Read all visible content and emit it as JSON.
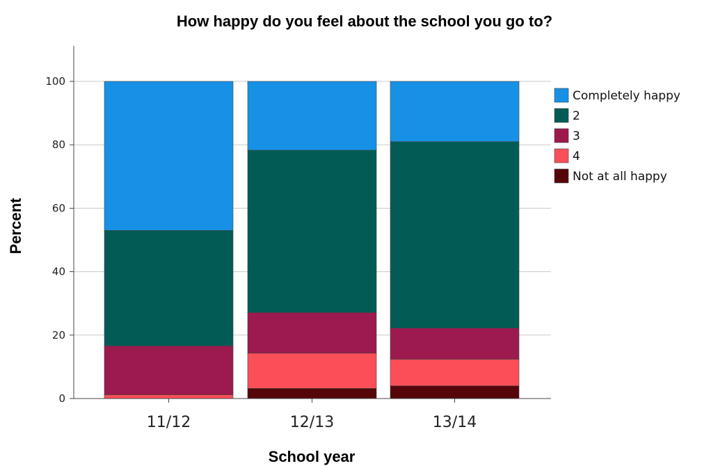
{
  "chart_data": {
    "type": "bar",
    "stacked": true,
    "title": "How happy do you feel about the school you go to?",
    "xlabel": "School year",
    "ylabel": "Percent",
    "ylim": [
      0,
      111
    ],
    "yticks": [
      0,
      20,
      40,
      60,
      80,
      100
    ],
    "categories": [
      "11/12",
      "12/13",
      "13/14"
    ],
    "series": [
      {
        "name": "Not at all happy",
        "color": "#560609",
        "values": [
          0,
          3.2,
          4
        ]
      },
      {
        "name": "4",
        "color": "#fa4f58",
        "values": [
          1.2,
          11.1,
          8.4
        ]
      },
      {
        "name": "3",
        "color": "#9c1a4e",
        "values": [
          15.4,
          12.8,
          9.8
        ]
      },
      {
        "name": "2",
        "color": "#025c55",
        "values": [
          36.4,
          51.2,
          58.8
        ]
      },
      {
        "name": "Completely happy",
        "color": "#1791e6",
        "values": [
          47,
          21.7,
          19
        ]
      }
    ],
    "legend_order": [
      "Completely happy",
      "2",
      "3",
      "4",
      "Not at all happy"
    ],
    "legend_position": "right",
    "grid": "horizontal"
  }
}
